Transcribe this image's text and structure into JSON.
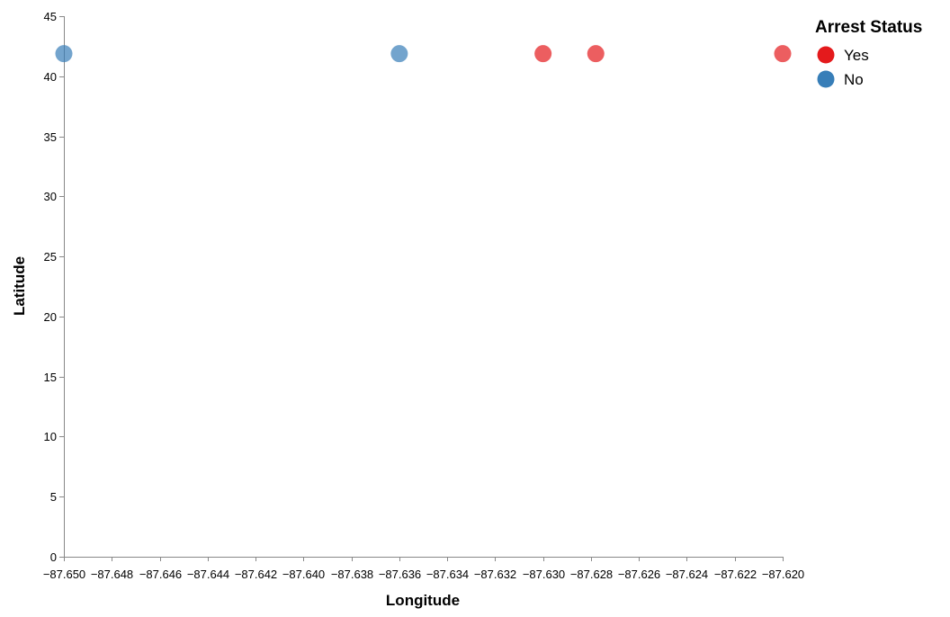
{
  "chart_data": {
    "type": "scatter",
    "xlabel": "Longitude",
    "ylabel": "Latitude",
    "xlim": [
      -87.65,
      -87.62
    ],
    "ylim": [
      0,
      45
    ],
    "x_ticks": [
      -87.65,
      -87.648,
      -87.646,
      -87.644,
      -87.642,
      -87.64,
      -87.638,
      -87.636,
      -87.634,
      -87.632,
      -87.63,
      -87.628,
      -87.626,
      -87.624,
      -87.622,
      -87.62
    ],
    "x_tick_labels": [
      "−87.650",
      "−87.648",
      "−87.646",
      "−87.644",
      "−87.642",
      "−87.640",
      "−87.638",
      "−87.636",
      "−87.634",
      "−87.632",
      "−87.630",
      "−87.628",
      "−87.626",
      "−87.624",
      "−87.622",
      "−87.620"
    ],
    "y_ticks": [
      0,
      5,
      10,
      15,
      20,
      25,
      30,
      35,
      40,
      45
    ],
    "y_tick_labels": [
      "0",
      "5",
      "10",
      "15",
      "20",
      "25",
      "30",
      "35",
      "40",
      "45"
    ],
    "grid": false,
    "legend": {
      "title": "Arrest Status",
      "placement": "top-right",
      "entries": [
        {
          "label": "Yes",
          "color": "#e41a1c"
        },
        {
          "label": "No",
          "color": "#377eb8"
        }
      ]
    },
    "series": [
      {
        "name": "Yes",
        "color": "#e41a1c",
        "points": [
          {
            "x": -87.63,
            "y": 41.88
          },
          {
            "x": -87.6278,
            "y": 41.88
          },
          {
            "x": -87.62,
            "y": 41.88
          }
        ]
      },
      {
        "name": "No",
        "color": "#377eb8",
        "points": [
          {
            "x": -87.65,
            "y": 41.88
          },
          {
            "x": -87.636,
            "y": 41.88
          }
        ]
      }
    ]
  }
}
